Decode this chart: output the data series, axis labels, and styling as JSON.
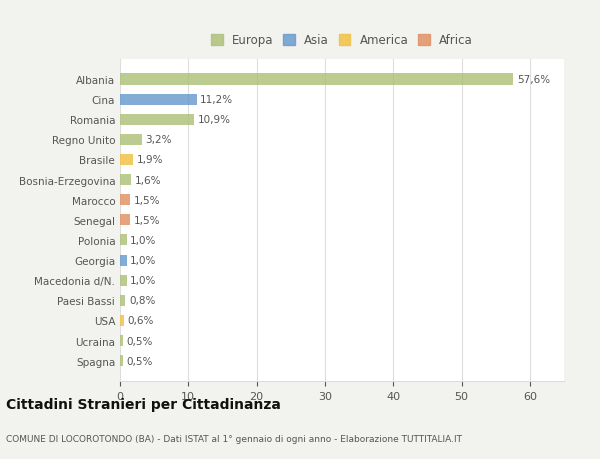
{
  "countries": [
    "Albania",
    "Cina",
    "Romania",
    "Regno Unito",
    "Brasile",
    "Bosnia-Erzegovina",
    "Marocco",
    "Senegal",
    "Polonia",
    "Georgia",
    "Macedonia d/N.",
    "Paesi Bassi",
    "USA",
    "Ucraina",
    "Spagna"
  ],
  "values": [
    57.6,
    11.2,
    10.9,
    3.2,
    1.9,
    1.6,
    1.5,
    1.5,
    1.0,
    1.0,
    1.0,
    0.8,
    0.6,
    0.5,
    0.5
  ],
  "labels": [
    "57,6%",
    "11,2%",
    "10,9%",
    "3,2%",
    "1,9%",
    "1,6%",
    "1,5%",
    "1,5%",
    "1,0%",
    "1,0%",
    "1,0%",
    "0,8%",
    "0,6%",
    "0,5%",
    "0,5%"
  ],
  "continents": [
    "Europa",
    "Asia",
    "Europa",
    "Europa",
    "America",
    "Europa",
    "Africa",
    "Africa",
    "Europa",
    "Asia",
    "Europa",
    "Europa",
    "America",
    "Europa",
    "Europa"
  ],
  "colors": {
    "Europa": "#adc178",
    "Asia": "#6699cc",
    "America": "#f0c040",
    "Africa": "#e09060"
  },
  "legend_order": [
    "Europa",
    "Asia",
    "America",
    "Africa"
  ],
  "title": "Cittadini Stranieri per Cittadinanza",
  "subtitle": "COMUNE DI LOCOROTONDO (BA) - Dati ISTAT al 1° gennaio di ogni anno - Elaborazione TUTTITALIA.IT",
  "xlim": [
    0,
    65
  ],
  "xticks": [
    0,
    10,
    20,
    30,
    40,
    50,
    60
  ],
  "bg_color": "#f2f2ee",
  "plot_bg_color": "#ffffff",
  "grid_color": "#dddddd",
  "text_color": "#555555",
  "title_color": "#111111",
  "subtitle_color": "#555555"
}
